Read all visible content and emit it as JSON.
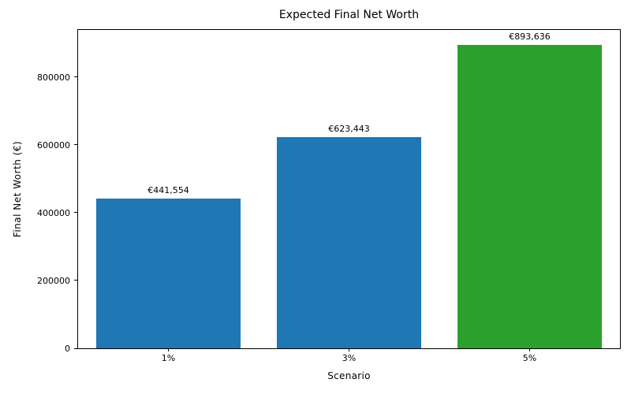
{
  "chart_data": {
    "type": "bar",
    "title": "Expected Final Net Worth",
    "xlabel": "Scenario",
    "ylabel": "Final Net Worth (€)",
    "categories": [
      "1%",
      "3%",
      "5%"
    ],
    "values": [
      441554,
      623443,
      893636
    ],
    "bar_labels": [
      "€441,554",
      "€623,443",
      "€893,636"
    ],
    "bar_colors": [
      "#1f77b4",
      "#1f77b4",
      "#2ca02c"
    ],
    "bar_width_fraction": 0.8,
    "ylim": [
      0,
      938318
    ],
    "yticks": [
      0,
      200000,
      400000,
      600000,
      800000
    ],
    "ytick_labels": [
      "0",
      "200000",
      "400000",
      "600000",
      "800000"
    ],
    "grid": false,
    "legend": "none",
    "background_color": "#ffffff",
    "spine_color": "#000000"
  }
}
